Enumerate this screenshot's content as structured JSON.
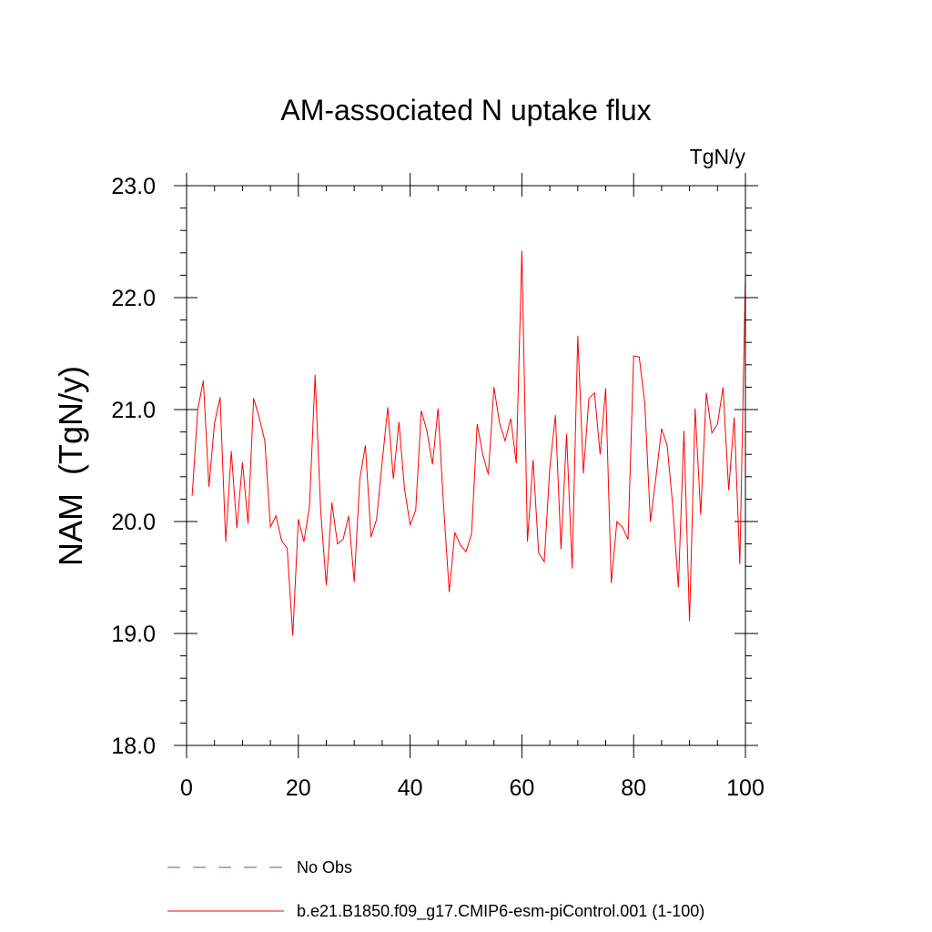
{
  "chart_data": {
    "type": "line",
    "title": "AM-associated N uptake flux",
    "units": "TgN/y",
    "ylabel": "NAM  (TgN/y)",
    "xlabel": "",
    "xlim": [
      0,
      100
    ],
    "ylim": [
      18.0,
      23.0
    ],
    "x_ticks": [
      0,
      20,
      40,
      60,
      80,
      100
    ],
    "y_ticks": [
      18.0,
      19.0,
      20.0,
      21.0,
      22.0,
      23.0
    ],
    "y_tick_labels": [
      "18.0",
      "19.0",
      "20.0",
      "21.0",
      "22.0",
      "23.0"
    ],
    "x_tick_labels": [
      "0",
      "20",
      "40",
      "60",
      "80",
      "100"
    ],
    "legend": [
      {
        "label": "No Obs",
        "color": "#5555bb",
        "style": "dashed"
      },
      {
        "label": "b.e21.B1850.f09_g17.CMIP6-esm-piControl.001 (1-100)",
        "color": "#ff0000",
        "style": "solid"
      }
    ],
    "series": [
      {
        "name": "b.e21.B1850.f09_g17.CMIP6-esm-piControl.001 (1-100)",
        "color": "#ff0000",
        "x": [
          1,
          2,
          3,
          4,
          5,
          6,
          7,
          8,
          9,
          10,
          11,
          12,
          13,
          14,
          15,
          16,
          17,
          18,
          19,
          20,
          21,
          22,
          23,
          24,
          25,
          26,
          27,
          28,
          29,
          30,
          31,
          32,
          33,
          34,
          35,
          36,
          37,
          38,
          39,
          40,
          41,
          42,
          43,
          44,
          45,
          46,
          47,
          48,
          49,
          50,
          51,
          52,
          53,
          54,
          55,
          56,
          57,
          58,
          59,
          60,
          61,
          62,
          63,
          64,
          65,
          66,
          67,
          68,
          69,
          70,
          71,
          72,
          73,
          74,
          75,
          76,
          77,
          78,
          79,
          80,
          81,
          82,
          83,
          84,
          85,
          86,
          87,
          88,
          89,
          90,
          91,
          92,
          93,
          94,
          95,
          96,
          97,
          98,
          99,
          100
        ],
        "values": [
          20.23,
          21.0,
          21.26,
          20.31,
          20.88,
          21.11,
          19.82,
          20.63,
          19.94,
          20.53,
          19.98,
          21.1,
          20.93,
          20.72,
          19.95,
          20.05,
          19.83,
          19.76,
          18.98,
          20.02,
          19.82,
          20.14,
          21.31,
          20.09,
          19.43,
          20.17,
          19.8,
          19.84,
          20.05,
          19.46,
          20.38,
          20.68,
          19.86,
          20.02,
          20.53,
          21.02,
          20.38,
          20.89,
          20.29,
          19.97,
          20.1,
          20.99,
          20.81,
          20.51,
          21.01,
          20.13,
          19.37,
          19.9,
          19.79,
          19.73,
          19.89,
          20.87,
          20.6,
          20.42,
          21.2,
          20.88,
          20.72,
          20.92,
          20.52,
          22.42,
          19.82,
          20.55,
          19.72,
          19.64,
          20.48,
          20.95,
          19.75,
          20.78,
          19.58,
          21.66,
          20.43,
          21.1,
          21.15,
          20.6,
          21.19,
          19.45,
          20.0,
          19.95,
          19.84,
          21.48,
          21.47,
          21.05,
          20.0,
          20.4,
          20.83,
          20.68,
          20.14,
          19.41,
          20.81,
          19.11,
          21.01,
          20.06,
          21.15,
          20.79,
          20.87,
          21.2,
          20.28,
          20.93,
          19.62,
          22.19
        ]
      }
    ]
  }
}
